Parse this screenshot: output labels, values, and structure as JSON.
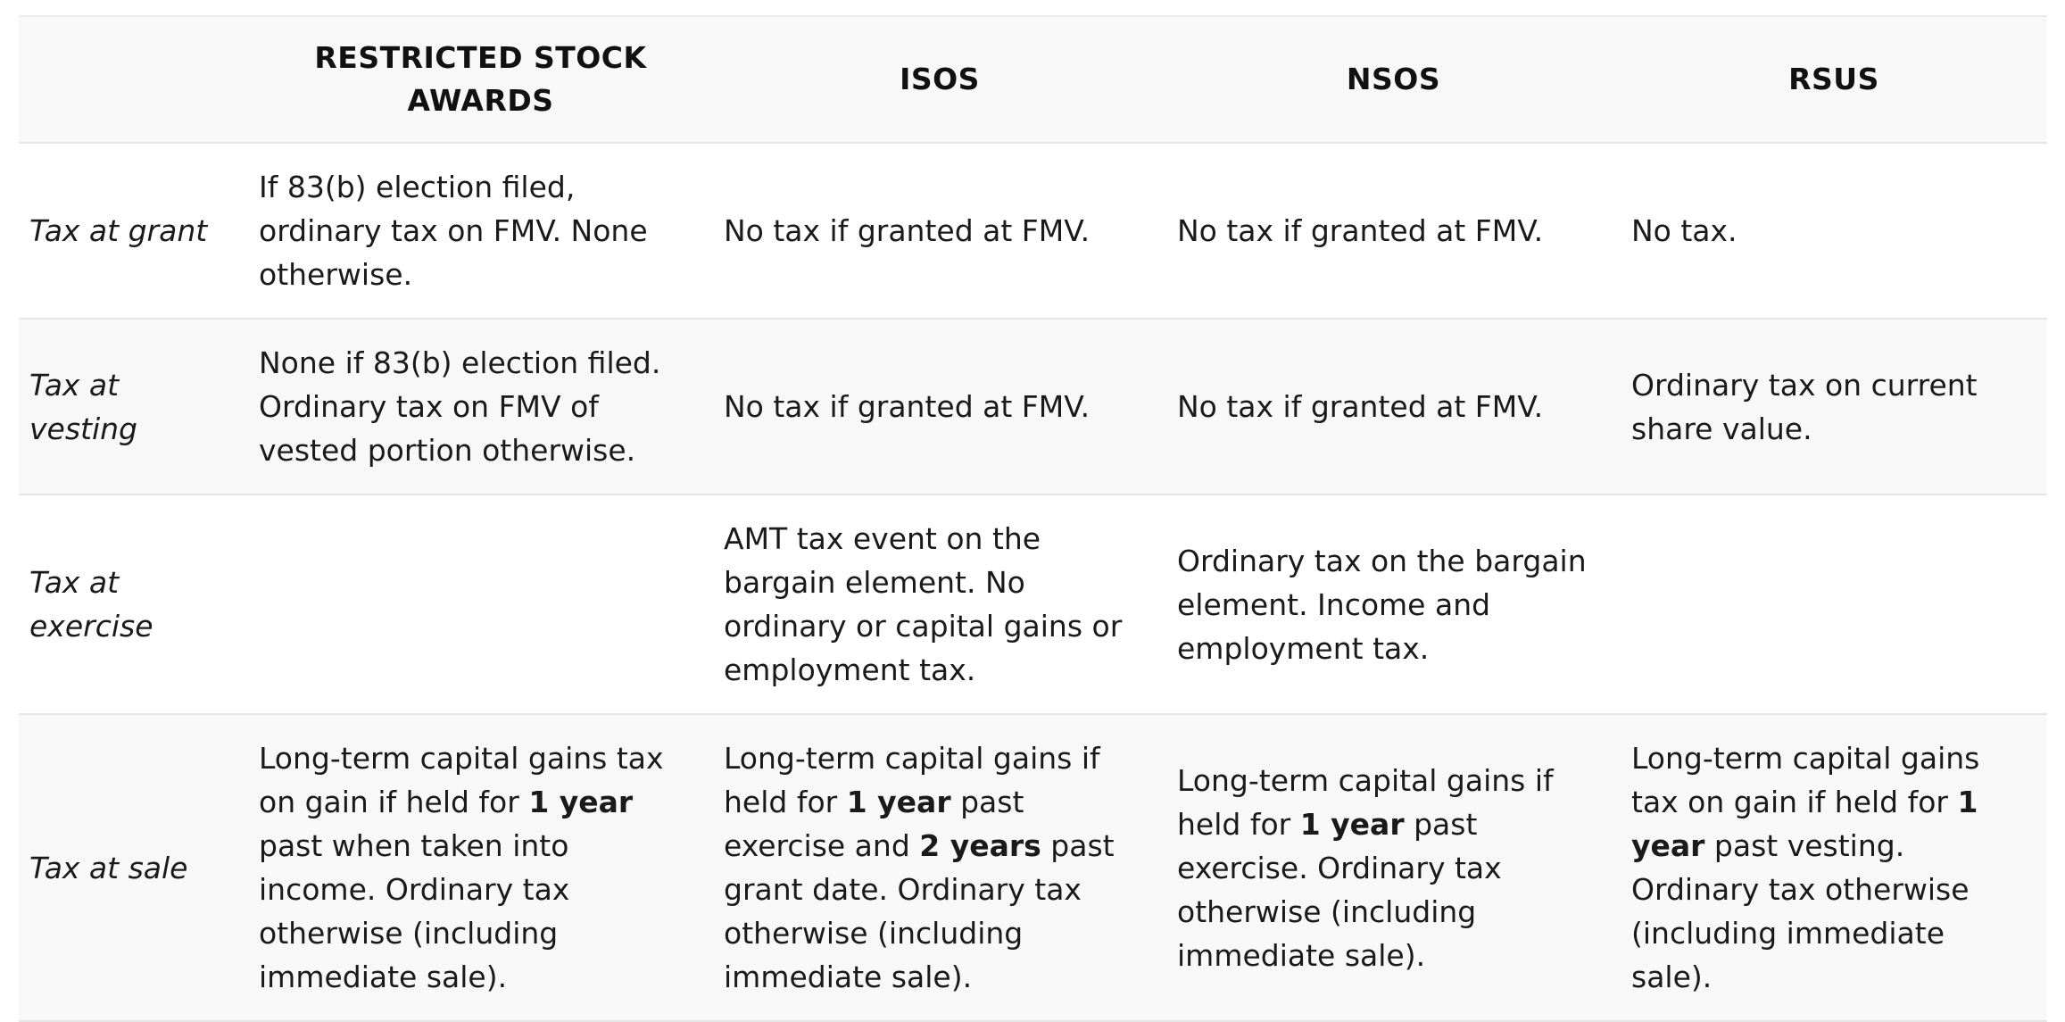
{
  "table": {
    "headers": [
      "",
      "RESTRICTED STOCK AWARDS",
      "ISOS",
      "NSOS",
      "RSUS"
    ],
    "rows": [
      {
        "label": "Tax at grant",
        "cells": [
          [
            {
              "t": "If 83(b) election filed, ordinary tax on FMV. None otherwise."
            }
          ],
          [
            {
              "t": "No tax if granted at FMV."
            }
          ],
          [
            {
              "t": "No tax if granted at FMV."
            }
          ],
          [
            {
              "t": "No tax."
            }
          ]
        ]
      },
      {
        "label": "Tax at vesting",
        "cells": [
          [
            {
              "t": "None if 83(b) election filed. Ordinary tax on FMV of vested portion otherwise."
            }
          ],
          [
            {
              "t": "No tax if granted at FMV."
            }
          ],
          [
            {
              "t": "No tax if granted at FMV."
            }
          ],
          [
            {
              "t": "Ordinary tax on current share value."
            }
          ]
        ]
      },
      {
        "label": "Tax at exercise",
        "cells": [
          [],
          [
            {
              "t": "AMT tax event on the bargain element. No ordinary or capital gains or employment tax."
            }
          ],
          [
            {
              "t": "Ordinary tax on the bargain element. Income and employment tax."
            }
          ],
          []
        ]
      },
      {
        "label": "Tax at sale",
        "cells": [
          [
            {
              "t": "Long-term capital gains tax on gain if held for "
            },
            {
              "t": "1 year",
              "b": true
            },
            {
              "t": " past when taken into income. Ordinary tax otherwise (including immediate sale)."
            }
          ],
          [
            {
              "t": "Long-term capital gains if held for "
            },
            {
              "t": "1 year",
              "b": true
            },
            {
              "t": " past exercise and "
            },
            {
              "t": "2 years",
              "b": true
            },
            {
              "t": " past grant date. Ordinary tax otherwise (including immediate sale)."
            }
          ],
          [
            {
              "t": "Long-term capital gains if held for "
            },
            {
              "t": "1 year",
              "b": true
            },
            {
              "t": " past exercise. Ordinary tax otherwise (including immediate sale)."
            }
          ],
          [
            {
              "t": "Long-term capital gains tax on gain if held for "
            },
            {
              "t": "1 year",
              "b": true
            },
            {
              "t": " past vesting. Ordinary tax otherwise (including immediate sale)."
            }
          ]
        ]
      }
    ]
  }
}
